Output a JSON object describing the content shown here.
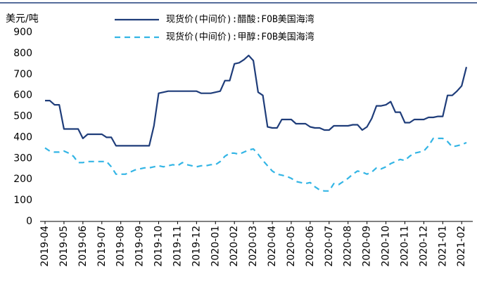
{
  "chart_data": {
    "type": "line",
    "unit_label": "美元/吨",
    "categories": [
      "2019-04",
      null,
      null,
      null,
      "2019-05",
      null,
      null,
      null,
      "2019-06",
      null,
      null,
      null,
      "2019-07",
      null,
      null,
      null,
      "2019-08",
      null,
      null,
      null,
      "2019-09",
      null,
      null,
      null,
      "2019-10",
      null,
      null,
      null,
      "2019-11",
      null,
      null,
      null,
      "2019-12",
      null,
      null,
      null,
      "2020-01",
      null,
      null,
      null,
      "2020-02",
      null,
      null,
      null,
      "2020-03",
      null,
      null,
      null,
      "2020-04",
      null,
      null,
      null,
      "2020-05",
      null,
      null,
      null,
      "2020-06",
      null,
      null,
      null,
      "2020-07",
      null,
      null,
      null,
      "2020-08",
      null,
      null,
      null,
      "2020-09",
      null,
      null,
      null,
      "2020-10",
      null,
      null,
      null,
      "2020-11",
      null,
      null,
      null,
      "2020-12",
      null,
      null,
      null,
      "2021-01",
      null,
      null,
      null,
      "2021-02",
      null
    ],
    "series": [
      {
        "name": "现货价(中间价):醋酸:FOB美国海湾",
        "color": "#1f3d7a",
        "dash": false,
        "values": [
          575,
          575,
          555,
          555,
          440,
          440,
          440,
          440,
          395,
          415,
          415,
          415,
          415,
          400,
          400,
          360,
          360,
          360,
          360,
          360,
          360,
          360,
          360,
          455,
          610,
          615,
          620,
          620,
          620,
          620,
          620,
          620,
          620,
          610,
          610,
          610,
          615,
          620,
          670,
          670,
          750,
          755,
          770,
          790,
          765,
          615,
          600,
          450,
          445,
          445,
          485,
          485,
          485,
          465,
          465,
          465,
          450,
          445,
          445,
          435,
          435,
          455,
          455,
          455,
          455,
          460,
          460,
          435,
          450,
          490,
          550,
          550,
          555,
          570,
          520,
          520,
          470,
          470,
          485,
          485,
          485,
          495,
          495,
          500,
          500,
          600,
          600,
          620,
          645,
          735
        ]
      },
      {
        "name": "现货价(中间价):甲醇:FOB美国海湾",
        "color": "#33b5e5",
        "dash": true,
        "values": [
          350,
          335,
          330,
          330,
          335,
          325,
          310,
          280,
          280,
          285,
          285,
          285,
          285,
          285,
          260,
          225,
          225,
          225,
          235,
          245,
          250,
          255,
          255,
          260,
          265,
          260,
          265,
          270,
          265,
          280,
          270,
          265,
          260,
          265,
          265,
          270,
          270,
          285,
          310,
          325,
          325,
          320,
          330,
          340,
          345,
          320,
          290,
          265,
          240,
          225,
          220,
          215,
          205,
          190,
          185,
          180,
          185,
          165,
          150,
          145,
          145,
          180,
          175,
          190,
          205,
          225,
          240,
          235,
          225,
          235,
          255,
          250,
          260,
          275,
          285,
          295,
          290,
          310,
          325,
          330,
          335,
          360,
          395,
          395,
          395,
          380,
          355,
          360,
          365,
          375
        ]
      }
    ],
    "ylim": [
      0,
      900
    ],
    "yticks": [
      0,
      100,
      200,
      300,
      400,
      500,
      600,
      700,
      800,
      900
    ]
  }
}
